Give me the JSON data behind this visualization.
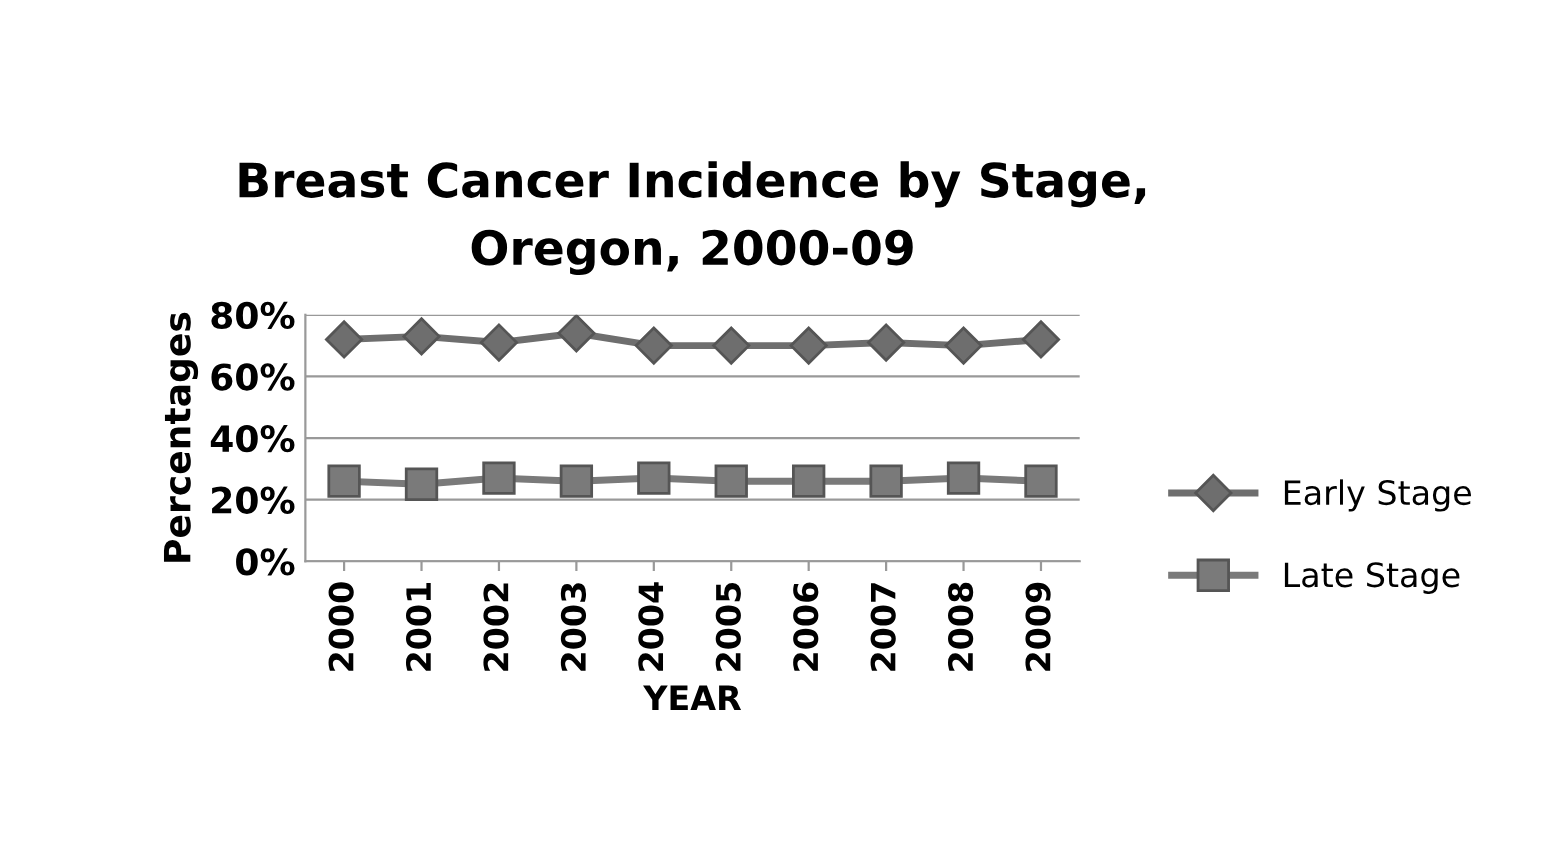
{
  "chart_data": {
    "type": "line",
    "title": "Breast Cancer Incidence by Stage,\nOregon, 2000-09",
    "xlabel": "YEAR",
    "ylabel": "Percentages",
    "categories": [
      "2000",
      "2001",
      "2002",
      "2003",
      "2004",
      "2005",
      "2006",
      "2007",
      "2008",
      "2009"
    ],
    "series": [
      {
        "name": "Early Stage",
        "color": "#6e6e6e",
        "marker": "diamond",
        "values": [
          72,
          73,
          71,
          74,
          70,
          70,
          70,
          71,
          70,
          72
        ]
      },
      {
        "name": "Late Stage",
        "color": "#7a7a7a",
        "marker": "square",
        "values": [
          26,
          25,
          27,
          26,
          27,
          26,
          26,
          26,
          27,
          26
        ]
      }
    ],
    "ylim": [
      0,
      80
    ],
    "yticks": [
      {
        "value": 0,
        "label": "0%"
      },
      {
        "value": 20,
        "label": "20%"
      },
      {
        "value": 40,
        "label": "40%"
      },
      {
        "value": 60,
        "label": "60%"
      },
      {
        "value": 80,
        "label": "80%"
      }
    ],
    "grid": "y",
    "legend": "right"
  }
}
